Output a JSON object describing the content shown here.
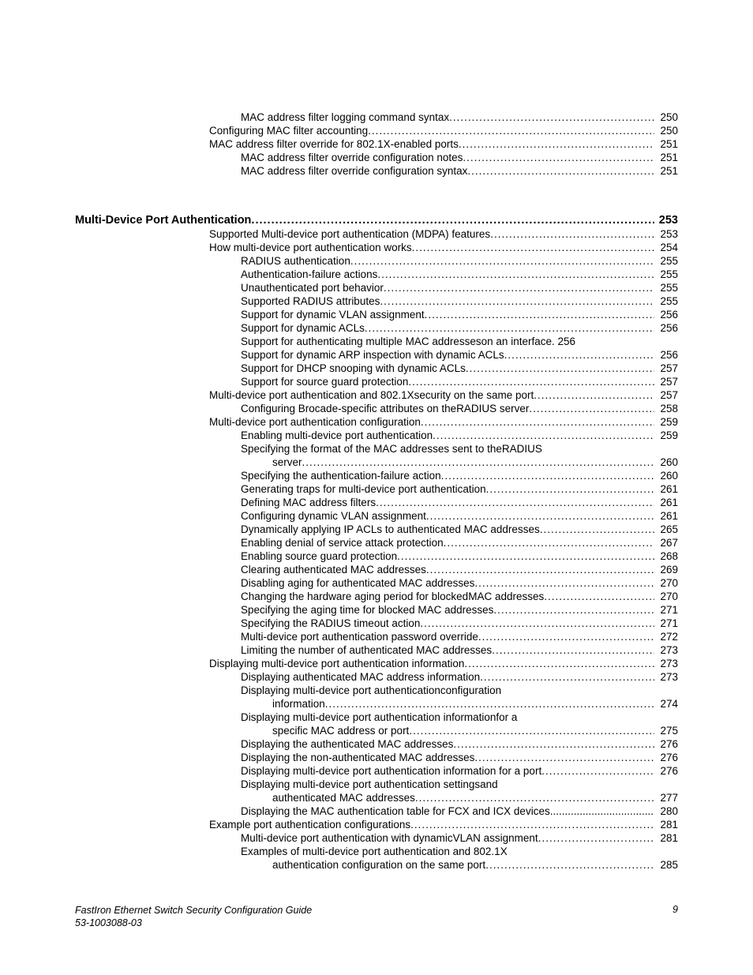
{
  "pre_section": {
    "indent": 2,
    "entries": [
      {
        "title": "MAC address filter logging command syntax",
        "page": "250",
        "indent": 2
      },
      {
        "title": "Configuring MAC filter accounting",
        "page": "250",
        "indent": 1
      },
      {
        "title": "MAC address filter override for 802.1X-enabled ports",
        "page": " 251",
        "indent": 1
      },
      {
        "title": "MAC address filter override configuration notes",
        "page": " 251",
        "indent": 2
      },
      {
        "title": "MAC address filter override configuration syntax",
        "page": "251",
        "indent": 2
      }
    ]
  },
  "section": {
    "heading": "Multi-Device Port Authentication",
    "page": "253",
    "entries": [
      {
        "title": "Supported Multi-device port authentication (MDPA) features",
        "page": " 253",
        "indent": 1
      },
      {
        "title": "How multi-device port authentication works",
        "page": " 254",
        "indent": 1
      },
      {
        "title": "RADIUS authentication",
        "page": " 255",
        "indent": 2
      },
      {
        "title": "Authentication-failure actions",
        "page": "255",
        "indent": 2
      },
      {
        "title": "Unauthenticated port behavior",
        "page": "255",
        "indent": 2
      },
      {
        "title": "Supported RADIUS attributes",
        "page": " 255",
        "indent": 2
      },
      {
        "title": "Support for dynamic VLAN assignment",
        "page": " 256",
        "indent": 2
      },
      {
        "title": "Support for dynamic ACLs",
        "page": " 256",
        "indent": 2
      },
      {
        "title": "Support for authenticating multiple MAC addresseson an interface. 256",
        "page": "",
        "indent": 2,
        "nodots": true
      },
      {
        "title": "Support for dynamic ARP inspection with dynamic ACLs",
        "page": "256",
        "indent": 2
      },
      {
        "title": "Support for DHCP snooping with dynamic ACLs",
        "page": " 257",
        "indent": 2
      },
      {
        "title": "Support for source guard protection",
        "page": "257",
        "indent": 2
      },
      {
        "title": "Multi-device port authentication and 802.1Xsecurity on the same port",
        "page": "257",
        "indent": 1
      },
      {
        "title": "Configuring Brocade-specific attributes on theRADIUS server",
        "page": "258",
        "indent": 2
      },
      {
        "title": "Multi-device port authentication configuration",
        "page": "259",
        "indent": 1
      },
      {
        "title": "Enabling multi-device port authentication",
        "page": " 259",
        "indent": 2
      },
      {
        "wrap": true,
        "first": "Specifying the format of the MAC addresses sent to theRADIUS",
        "cont": "server",
        "page": "260",
        "indent": 2
      },
      {
        "title": "Specifying the authentication-failure action",
        "page": "260",
        "indent": 2
      },
      {
        "title": "Generating traps for multi-device port authentication",
        "page": " 261",
        "indent": 2
      },
      {
        "title": "Defining MAC address filters",
        "page": "261",
        "indent": 2
      },
      {
        "title": "Configuring dynamic VLAN assignment",
        "page": "261",
        "indent": 2
      },
      {
        "title": "Dynamically applying IP ACLs to authenticated MAC addresses",
        "page": " 265",
        "indent": 2
      },
      {
        "title": "Enabling denial of service attack protection",
        "page": "267",
        "indent": 2
      },
      {
        "title": "Enabling source guard protection",
        "page": " 268",
        "indent": 2
      },
      {
        "title": "Clearing authenticated MAC addresses",
        "page": "269",
        "indent": 2
      },
      {
        "title": "Disabling aging for authenticated MAC addresses",
        "page": " 270",
        "indent": 2
      },
      {
        "title": "Changing the hardware aging period for blockedMAC addresses",
        "page": "270",
        "indent": 2
      },
      {
        "title": "Specifying the aging time for blocked MAC addresses",
        "page": "271",
        "indent": 2
      },
      {
        "title": "Specifying the RADIUS timeout action",
        "page": "271",
        "indent": 2
      },
      {
        "title": "Multi-device port authentication password override",
        "page": " 272",
        "indent": 2
      },
      {
        "title": "Limiting the number of authenticated MAC addresses",
        "page": " 273",
        "indent": 2
      },
      {
        "title": "Displaying multi-device port authentication information",
        "page": " 273",
        "indent": 1
      },
      {
        "title": "Displaying authenticated MAC address information",
        "page": " 273",
        "indent": 2
      },
      {
        "wrap": true,
        "first": "Displaying multi-device port authenticationconfiguration",
        "cont": "information",
        "page": "274",
        "indent": 2
      },
      {
        "wrap": true,
        "first": "Displaying multi-device port authentication informationfor a",
        "cont": "specific MAC address or port",
        "page": " 275",
        "indent": 2
      },
      {
        "title": "Displaying the authenticated MAC addresses",
        "page": " 276",
        "indent": 2
      },
      {
        "title": "Displaying the non-authenticated MAC addresses",
        "page": " 276",
        "indent": 2
      },
      {
        "title": "Displaying multi-device port authentication information for a port",
        "page": "276",
        "indent": 2
      },
      {
        "wrap": true,
        "first": "Displaying multi-device port authentication settingsand",
        "cont": "authenticated MAC addresses",
        "page": " 277",
        "indent": 2
      },
      {
        "title": "Displaying the MAC authentication table for FCX and ICX devices",
        "page": "280",
        "indent": 2,
        "tightdots": true
      },
      {
        "title": "Example port authentication configurations",
        "page": " 281",
        "indent": 1
      },
      {
        "title": "Multi-device port authentication with dynamicVLAN assignment ",
        "page": "281",
        "indent": 2
      },
      {
        "wrap": true,
        "first": "Examples of multi-device port authentication and 802.1X",
        "cont": "authentication configuration on the same port",
        "page": "285",
        "indent": 2
      }
    ]
  },
  "footer": {
    "title": "FastIron Ethernet Switch Security Configuration Guide",
    "docnum": "53-1003088-03",
    "pagenum": "9"
  }
}
